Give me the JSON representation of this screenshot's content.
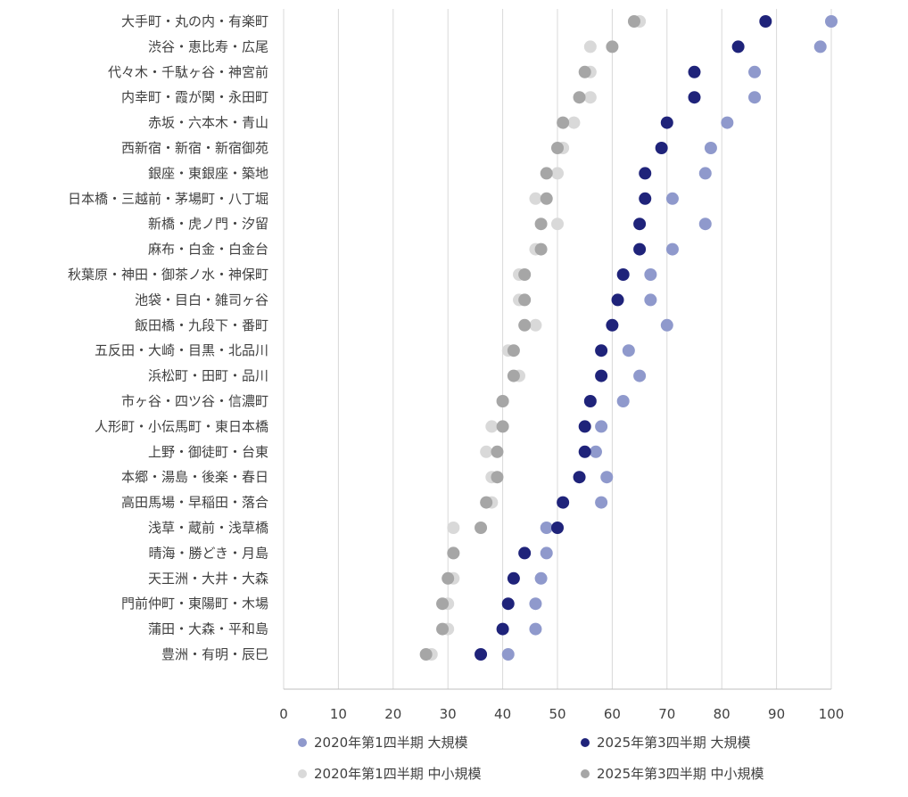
{
  "chart_data": {
    "type": "scatter",
    "categories": [
      "大手町・丸の内・有楽町",
      "渋谷・恵比寿・広尾",
      "代々木・千駄ヶ谷・神宮前",
      "内幸町・霞が関・永田町",
      "赤坂・六本木・青山",
      "西新宿・新宿・新宿御苑",
      "銀座・東銀座・築地",
      "日本橋・三越前・茅場町・八丁堀",
      "新橋・虎ノ門・汐留",
      "麻布・白金・白金台",
      "秋葉原・神田・御茶ノ水・神保町",
      "池袋・目白・雑司ヶ谷",
      "飯田橋・九段下・番町",
      "五反田・大崎・目黒・北品川",
      "浜松町・田町・品川",
      "市ヶ谷・四ツ谷・信濃町",
      "人形町・小伝馬町・東日本橋",
      "上野・御徒町・台東",
      "本郷・湯島・後楽・春日",
      "高田馬場・早稲田・落合",
      "浅草・蔵前・浅草橋",
      "晴海・勝どき・月島",
      "天王洲・大井・大森",
      "門前仲町・東陽町・木場",
      "蒲田・大森・平和島",
      "豊洲・有明・辰巳"
    ],
    "xlim": [
      0,
      100
    ],
    "xticks": [
      "0",
      "10",
      "20",
      "30",
      "40",
      "50",
      "60",
      "70",
      "80",
      "90",
      "100"
    ],
    "grid": "vertical",
    "legend_position": "bottom",
    "series": [
      {
        "name": "2020年第1四半期 中小規模",
        "color": "#d9d9d9",
        "values": [
          65,
          56,
          56,
          56,
          53,
          51,
          50,
          46,
          50,
          46,
          43,
          43,
          46,
          41,
          43,
          40,
          38,
          37,
          38,
          38,
          31,
          31,
          31,
          30,
          30,
          27
        ]
      },
      {
        "name": "2025年第3四半期 中小規模",
        "color": "#a6a6a6",
        "values": [
          64,
          60,
          55,
          54,
          51,
          50,
          48,
          48,
          47,
          47,
          44,
          44,
          44,
          42,
          42,
          40,
          40,
          39,
          39,
          37,
          36,
          31,
          30,
          29,
          29,
          26
        ]
      },
      {
        "name": "2020年第1四半期 大規模",
        "color": "#8f99cc",
        "values": [
          100,
          98,
          86,
          86,
          81,
          78,
          77,
          71,
          77,
          71,
          67,
          67,
          70,
          63,
          65,
          62,
          58,
          57,
          59,
          58,
          48,
          48,
          47,
          46,
          46,
          41
        ]
      },
      {
        "name": "2025年第3四半期 大規模",
        "color": "#1f237a",
        "values": [
          88,
          83,
          75,
          75,
          70,
          69,
          66,
          66,
          65,
          65,
          62,
          61,
          60,
          58,
          58,
          56,
          55,
          55,
          54,
          51,
          50,
          44,
          42,
          41,
          40,
          36
        ]
      }
    ],
    "legend": [
      {
        "label": "2020年第1四半期  大規模",
        "color": "#8f99cc"
      },
      {
        "label": "2025年第3四半期  大規模",
        "color": "#1f237a"
      },
      {
        "label": "2020年第1四半期  中小規模",
        "color": "#d9d9d9"
      },
      {
        "label": "2025年第3四半期  中小規模",
        "color": "#a6a6a6"
      }
    ]
  }
}
